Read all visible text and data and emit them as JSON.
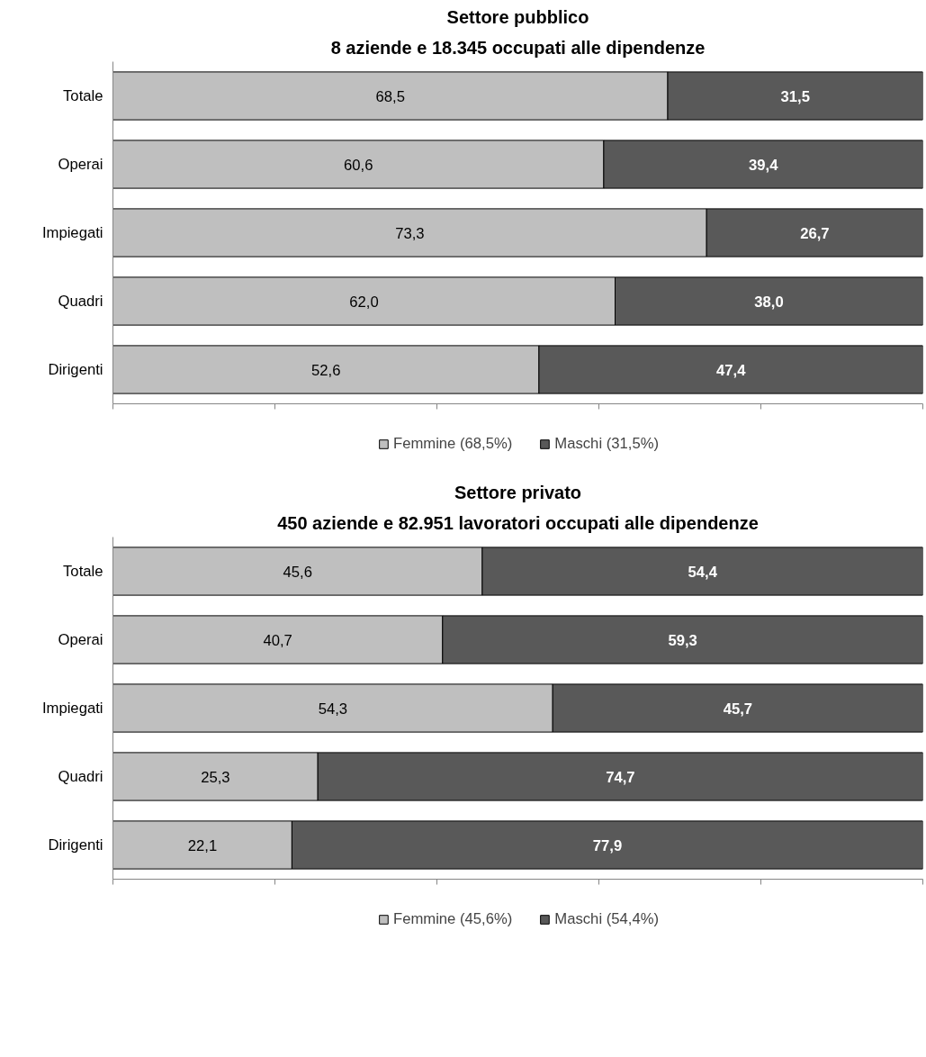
{
  "chart_data": [
    {
      "type": "bar",
      "orientation": "horizontal",
      "stacked": true,
      "title": "Settore pubblico",
      "subtitle": "8 aziende e 18.345 occupati alle dipendenze",
      "categories": [
        "Totale",
        "Operai",
        "Impiegati",
        "Quadri",
        "Dirigenti"
      ],
      "series": [
        {
          "name": "Femmine (68,5%)",
          "color": "#bfbfbf",
          "values": [
            68.5,
            60.6,
            73.3,
            62.0,
            52.6
          ],
          "value_labels": [
            "68,5",
            "60,6",
            "73,3",
            "62,0",
            "52,6"
          ]
        },
        {
          "name": "Maschi (31,5%)",
          "color": "#595959",
          "values": [
            31.5,
            39.4,
            26.7,
            38.0,
            47.4
          ],
          "value_labels": [
            "31,5",
            "39,4",
            "26,7",
            "38,0",
            "47,4"
          ]
        }
      ],
      "xlim": [
        0,
        100
      ],
      "xticks": [
        {
          "value": 0,
          "label": null
        },
        {
          "value": 20,
          "label": null
        },
        {
          "value": 40,
          "label": null
        },
        {
          "value": 60,
          "label": null
        },
        {
          "value": 80,
          "label": null
        },
        {
          "value": 100,
          "label": null
        }
      ],
      "tick_labels": "y",
      "grid": false,
      "legend": "bottom"
    },
    {
      "type": "bar",
      "orientation": "horizontal",
      "stacked": true,
      "title": "Settore privato",
      "subtitle": "450 aziende e 82.951 lavoratori occupati alle dipendenze",
      "categories": [
        "Totale",
        "Operai",
        "Impiegati",
        "Quadri",
        "Dirigenti"
      ],
      "series": [
        {
          "name": "Femmine (45,6%)",
          "color": "#bfbfbf",
          "values": [
            45.6,
            40.7,
            54.3,
            25.3,
            22.1
          ],
          "value_labels": [
            "45,6",
            "40,7",
            "54,3",
            "25,3",
            "22,1"
          ]
        },
        {
          "name": "Maschi (54,4%)",
          "color": "#595959",
          "values": [
            54.4,
            59.3,
            45.7,
            74.7,
            77.9
          ],
          "value_labels": [
            "54,4",
            "59,3",
            "45,7",
            "74,7",
            "77,9"
          ]
        }
      ],
      "xlim": [
        0,
        100
      ],
      "xticks": [
        {
          "value": 0,
          "label": null
        },
        {
          "value": 20,
          "label": null
        },
        {
          "value": 40,
          "label": null
        },
        {
          "value": 60,
          "label": null
        },
        {
          "value": 80,
          "label": null
        },
        {
          "value": 100,
          "label": null
        }
      ],
      "tick_labels": "y",
      "grid": false,
      "legend": "bottom"
    }
  ]
}
